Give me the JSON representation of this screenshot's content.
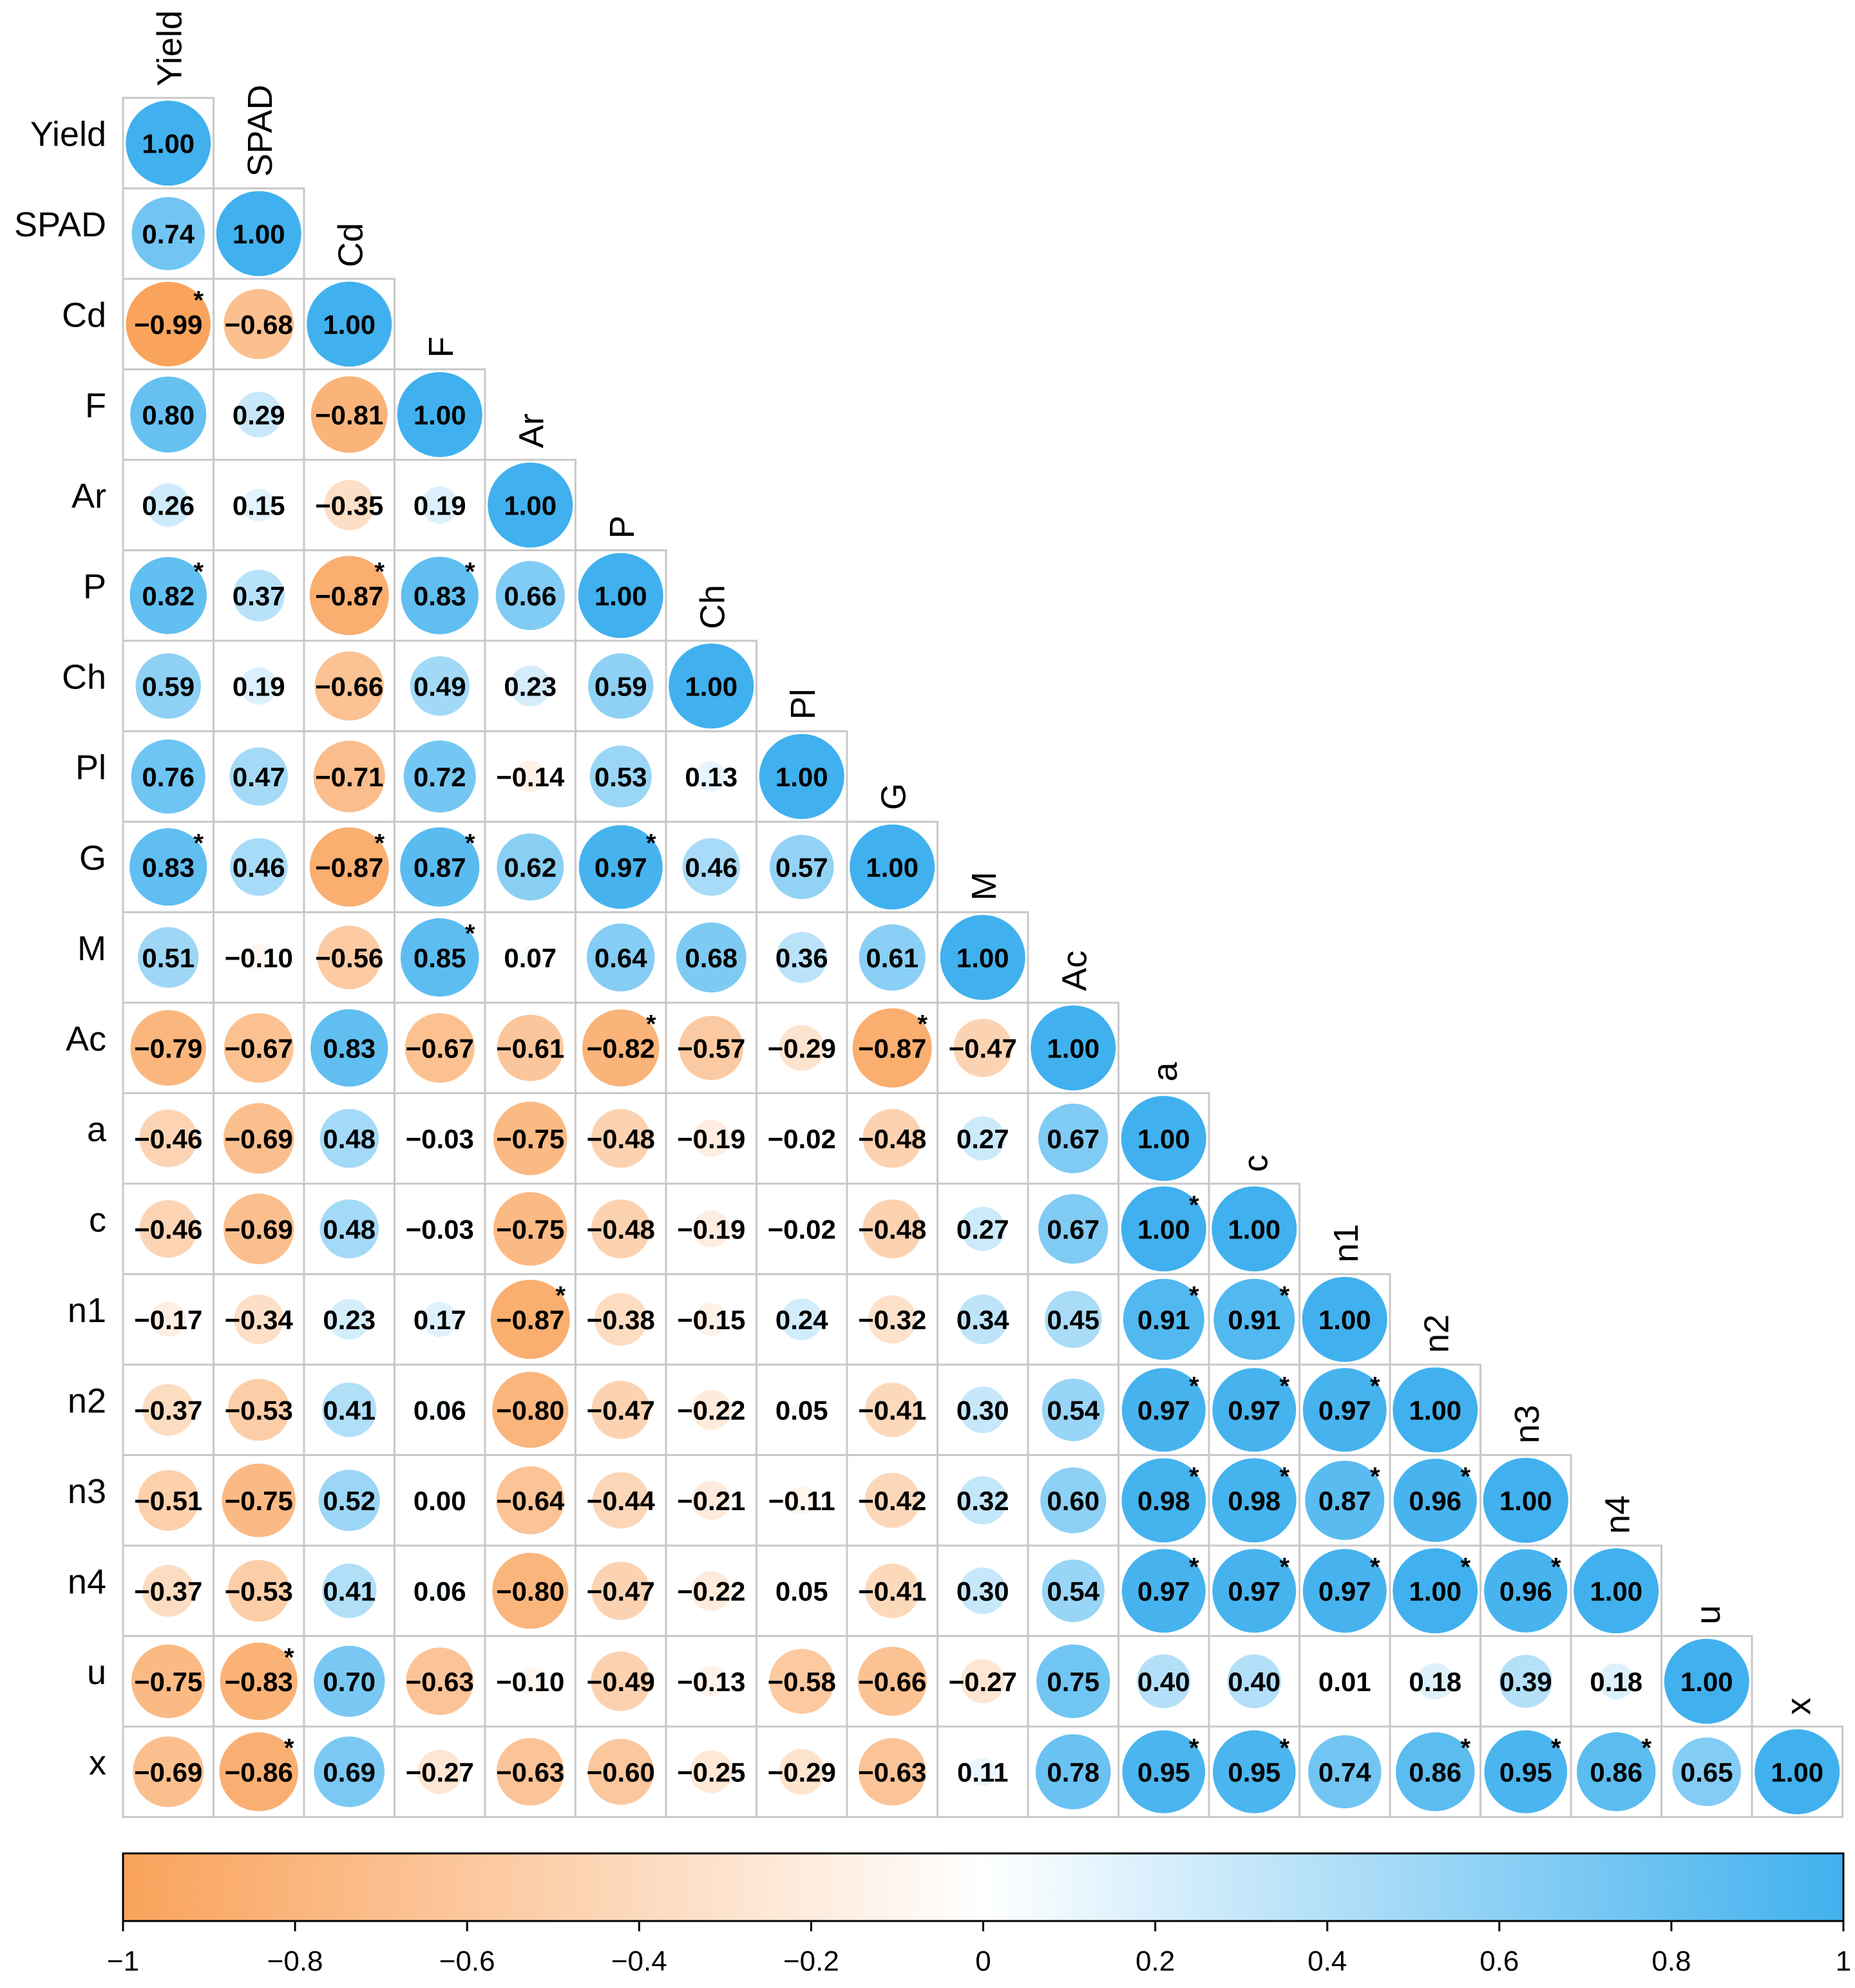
{
  "chart_data": {
    "type": "heatmap",
    "variables": [
      "Yield",
      "SPAD",
      "Cd",
      "F",
      "Ar",
      "P",
      "Ch",
      "Pl",
      "G",
      "M",
      "Ac",
      "a",
      "c",
      "n1",
      "n2",
      "n3",
      "n4",
      "u",
      "x"
    ],
    "matrix": [
      [
        "1.00"
      ],
      [
        "0.74",
        "1.00"
      ],
      [
        "-0.99",
        "-0.68",
        "1.00"
      ],
      [
        "0.80",
        "0.29",
        "-0.81",
        "1.00"
      ],
      [
        "0.26",
        "0.15",
        "-0.35",
        "0.19",
        "1.00"
      ],
      [
        "0.82",
        "0.37",
        "-0.87",
        "0.83",
        "0.66",
        "1.00"
      ],
      [
        "0.59",
        "0.19",
        "-0.66",
        "0.49",
        "0.23",
        "0.59",
        "1.00"
      ],
      [
        "0.76",
        "0.47",
        "-0.71",
        "0.72",
        "-0.14",
        "0.53",
        "0.13",
        "1.00"
      ],
      [
        "0.83",
        "0.46",
        "-0.87",
        "0.87",
        "0.62",
        "0.97",
        "0.46",
        "0.57",
        "1.00"
      ],
      [
        "0.51",
        "-0.10",
        "-0.56",
        "0.85",
        "0.07",
        "0.64",
        "0.68",
        "0.36",
        "0.61",
        "1.00"
      ],
      [
        "-0.79",
        "-0.67",
        "0.83",
        "-0.67",
        "-0.61",
        "-0.82",
        "-0.57",
        "-0.29",
        "-0.87",
        "-0.47",
        "1.00"
      ],
      [
        "-0.46",
        "-0.69",
        "0.48",
        "-0.03",
        "-0.75",
        "-0.48",
        "-0.19",
        "-0.02",
        "-0.48",
        "0.27",
        "0.67",
        "1.00"
      ],
      [
        "-0.46",
        "-0.69",
        "0.48",
        "-0.03",
        "-0.75",
        "-0.48",
        "-0.19",
        "-0.02",
        "-0.48",
        "0.27",
        "0.67",
        "1.00",
        "1.00"
      ],
      [
        "-0.17",
        "-0.34",
        "0.23",
        "0.17",
        "-0.87",
        "-0.38",
        "-0.15",
        "0.24",
        "-0.32",
        "0.34",
        "0.45",
        "0.91",
        "0.91",
        "1.00"
      ],
      [
        "-0.37",
        "-0.53",
        "0.41",
        "0.06",
        "-0.80",
        "-0.47",
        "-0.22",
        "0.05",
        "-0.41",
        "0.30",
        "0.54",
        "0.97",
        "0.97",
        "0.97",
        "1.00"
      ],
      [
        "-0.51",
        "-0.75",
        "0.52",
        "0.00",
        "-0.64",
        "-0.44",
        "-0.21",
        "-0.11",
        "-0.42",
        "0.32",
        "0.60",
        "0.98",
        "0.98",
        "0.87",
        "0.96",
        "1.00"
      ],
      [
        "-0.37",
        "-0.53",
        "0.41",
        "0.06",
        "-0.80",
        "-0.47",
        "-0.22",
        "0.05",
        "-0.41",
        "0.30",
        "0.54",
        "0.97",
        "0.97",
        "0.97",
        "1.00",
        "0.96",
        "1.00"
      ],
      [
        "-0.75",
        "-0.83",
        "0.70",
        "-0.63",
        "-0.10",
        "-0.49",
        "-0.13",
        "-0.58",
        "-0.66",
        "-0.27",
        "0.75",
        "0.40",
        "0.40",
        "0.01",
        "0.18",
        "0.39",
        "0.18",
        "1.00"
      ],
      [
        "-0.69",
        "-0.86",
        "0.69",
        "-0.27",
        "-0.63",
        "-0.60",
        "-0.25",
        "-0.29",
        "-0.63",
        "0.11",
        "0.78",
        "0.95",
        "0.95",
        "0.74",
        "0.86",
        "0.95",
        "0.86",
        "0.65",
        "1.00"
      ]
    ],
    "significant": [
      [
        2,
        0
      ],
      [
        5,
        0
      ],
      [
        5,
        2
      ],
      [
        5,
        3
      ],
      [
        8,
        0
      ],
      [
        8,
        2
      ],
      [
        8,
        3
      ],
      [
        8,
        5
      ],
      [
        9,
        3
      ],
      [
        10,
        5
      ],
      [
        10,
        8
      ],
      [
        12,
        11
      ],
      [
        13,
        4
      ],
      [
        13,
        11
      ],
      [
        13,
        12
      ],
      [
        14,
        11
      ],
      [
        14,
        12
      ],
      [
        14,
        13
      ],
      [
        15,
        11
      ],
      [
        15,
        12
      ],
      [
        15,
        13
      ],
      [
        15,
        14
      ],
      [
        16,
        11
      ],
      [
        16,
        12
      ],
      [
        16,
        13
      ],
      [
        16,
        14
      ],
      [
        16,
        15
      ],
      [
        17,
        1
      ],
      [
        18,
        1
      ],
      [
        18,
        11
      ],
      [
        18,
        12
      ],
      [
        18,
        14
      ],
      [
        18,
        15
      ],
      [
        18,
        16
      ]
    ],
    "significance_marker": "*",
    "colorbar": {
      "min": -1,
      "max": 1,
      "ticks": [
        "-1",
        "-0.8",
        "-0.6",
        "-0.4",
        "-0.2",
        "0",
        "0.2",
        "0.4",
        "0.6",
        "0.8",
        "1"
      ],
      "negative_color": "#F9A25B",
      "zero_color": "#FFFFFF",
      "positive_color": "#40B1EE"
    }
  }
}
